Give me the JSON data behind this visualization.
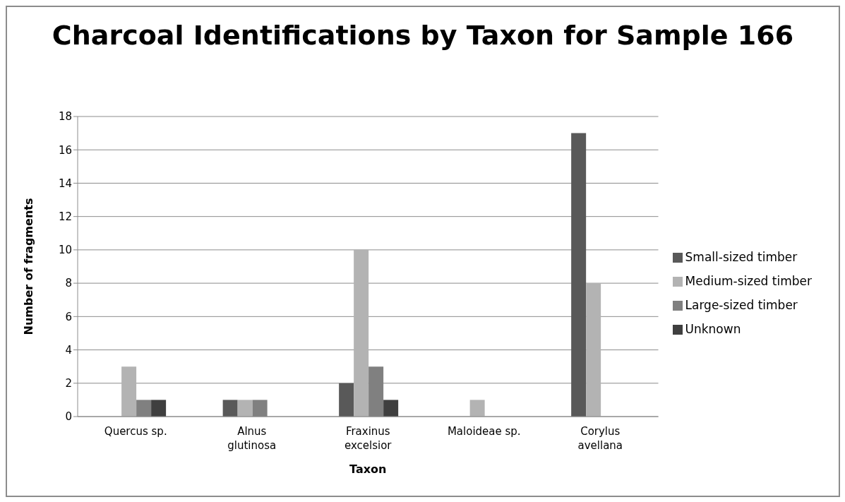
{
  "chart_data": {
    "type": "bar",
    "title": "Charcoal Identifications by Taxon for Sample 166",
    "xlabel": "Taxon",
    "ylabel": "Number of fragments",
    "categories": [
      "Quercus sp.",
      "Alnus glutinosa",
      "Fraxinus excelsior",
      "Maloideae sp.",
      "Corylus avellana"
    ],
    "series": [
      {
        "name": "Small-sized timber",
        "color": "#595959",
        "values": [
          0,
          1,
          2,
          0,
          17
        ]
      },
      {
        "name": "Medium-sized timber",
        "color": "#b3b3b3",
        "values": [
          3,
          1,
          10,
          1,
          8
        ]
      },
      {
        "name": "Large-sized timber",
        "color": "#808080",
        "values": [
          1,
          1,
          3,
          0,
          0
        ]
      },
      {
        "name": "Unknown",
        "color": "#3f3f3f",
        "values": [
          1,
          0,
          1,
          0,
          0
        ]
      }
    ],
    "ylim": [
      0,
      18
    ],
    "yticks": [
      0,
      2,
      4,
      6,
      8,
      10,
      12,
      14,
      16,
      18
    ],
    "grid": "y",
    "legend": "right"
  }
}
